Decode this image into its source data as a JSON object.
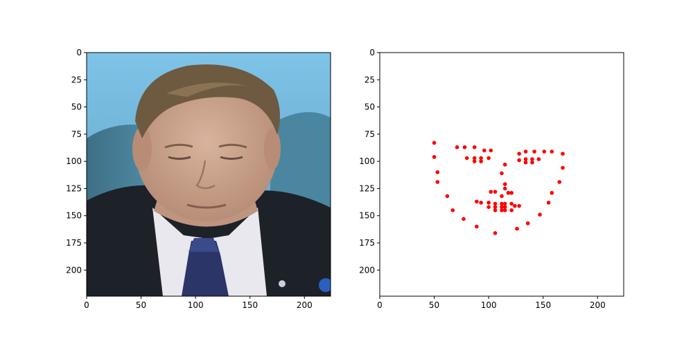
{
  "chart_data": [
    {
      "type": "image",
      "xlim": [
        0,
        224
      ],
      "ylim": [
        224,
        0
      ],
      "xticks": [
        0,
        50,
        100,
        150,
        200
      ],
      "yticks": [
        0,
        25,
        50,
        75,
        100,
        125,
        150,
        175,
        200
      ],
      "content": "face photo"
    },
    {
      "type": "scatter",
      "xlim": [
        0,
        224
      ],
      "ylim": [
        224,
        0
      ],
      "xticks": [
        0,
        50,
        100,
        150,
        200
      ],
      "yticks": [
        0,
        25,
        50,
        75,
        100,
        125,
        150,
        175,
        200
      ],
      "marker_color": "#ff0000",
      "points": [
        [
          50,
          83
        ],
        [
          50,
          96
        ],
        [
          53,
          110
        ],
        [
          53,
          119
        ],
        [
          62,
          132
        ],
        [
          67,
          145
        ],
        [
          77,
          153
        ],
        [
          89,
          160
        ],
        [
          106,
          166
        ],
        [
          126,
          162
        ],
        [
          136,
          157
        ],
        [
          147,
          149
        ],
        [
          155,
          138
        ],
        [
          158,
          129
        ],
        [
          165,
          119
        ],
        [
          168,
          106
        ],
        [
          168,
          93
        ],
        [
          71,
          87
        ],
        [
          78,
          87
        ],
        [
          87,
          87
        ],
        [
          96,
          90
        ],
        [
          102,
          90
        ],
        [
          128,
          93
        ],
        [
          134,
          91
        ],
        [
          142,
          91
        ],
        [
          151,
          91
        ],
        [
          158,
          91
        ],
        [
          115,
          103
        ],
        [
          112,
          111
        ],
        [
          115,
          121
        ],
        [
          115,
          125
        ],
        [
          102,
          128
        ],
        [
          106,
          128
        ],
        [
          112,
          132
        ],
        [
          118,
          129
        ],
        [
          121,
          129
        ],
        [
          80,
          97
        ],
        [
          87,
          97
        ],
        [
          87,
          100
        ],
        [
          93,
          97
        ],
        [
          93,
          100
        ],
        [
          100,
          97
        ],
        [
          128,
          99
        ],
        [
          134,
          98
        ],
        [
          134,
          101
        ],
        [
          140,
          98
        ],
        [
          140,
          101
        ],
        [
          146,
          98
        ],
        [
          89,
          137
        ],
        [
          93,
          138
        ],
        [
          100,
          138
        ],
        [
          100,
          142
        ],
        [
          106,
          139
        ],
        [
          106,
          142
        ],
        [
          106,
          145
        ],
        [
          112,
          139
        ],
        [
          112,
          142
        ],
        [
          112,
          145
        ],
        [
          115,
          139
        ],
        [
          115,
          142
        ],
        [
          115,
          145
        ],
        [
          121,
          139
        ],
        [
          121,
          145
        ],
        [
          124,
          141
        ],
        [
          128,
          141
        ]
      ]
    }
  ]
}
